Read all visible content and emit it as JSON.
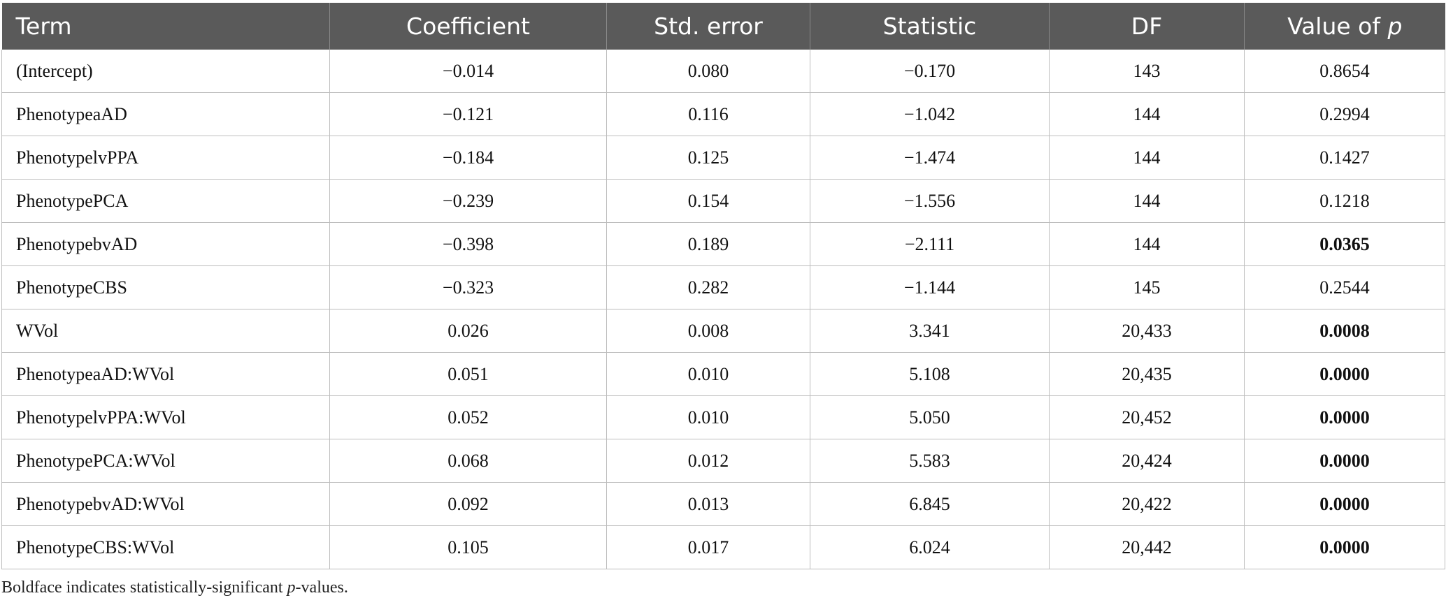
{
  "table": {
    "columns": [
      "Term",
      "Coefficient",
      "Std. error",
      "Statistic",
      "DF",
      "Value of"
    ],
    "last_col_italic": "p",
    "rows": [
      {
        "term": "(Intercept)",
        "coefficient": "−0.014",
        "std_error": "0.080",
        "statistic": "−0.170",
        "df": "143",
        "p": "0.8654",
        "significant": false
      },
      {
        "term": "PhenotypeaAD",
        "coefficient": "−0.121",
        "std_error": "0.116",
        "statistic": "−1.042",
        "df": "144",
        "p": "0.2994",
        "significant": false
      },
      {
        "term": "PhenotypelvPPA",
        "coefficient": "−0.184",
        "std_error": "0.125",
        "statistic": "−1.474",
        "df": "144",
        "p": "0.1427",
        "significant": false
      },
      {
        "term": "PhenotypePCA",
        "coefficient": "−0.239",
        "std_error": "0.154",
        "statistic": "−1.556",
        "df": "144",
        "p": "0.1218",
        "significant": false
      },
      {
        "term": "PhenotypebvAD",
        "coefficient": "−0.398",
        "std_error": "0.189",
        "statistic": "−2.111",
        "df": "144",
        "p": "0.0365",
        "significant": true
      },
      {
        "term": "PhenotypeCBS",
        "coefficient": "−0.323",
        "std_error": "0.282",
        "statistic": "−1.144",
        "df": "145",
        "p": "0.2544",
        "significant": false
      },
      {
        "term": "WVol",
        "coefficient": "0.026",
        "std_error": "0.008",
        "statistic": "3.341",
        "df": "20,433",
        "p": "0.0008",
        "significant": true
      },
      {
        "term": "PhenotypeaAD:WVol",
        "coefficient": "0.051",
        "std_error": "0.010",
        "statistic": "5.108",
        "df": "20,435",
        "p": "0.0000",
        "significant": true
      },
      {
        "term": "PhenotypelvPPA:WVol",
        "coefficient": "0.052",
        "std_error": "0.010",
        "statistic": "5.050",
        "df": "20,452",
        "p": "0.0000",
        "significant": true
      },
      {
        "term": "PhenotypePCA:WVol",
        "coefficient": "0.068",
        "std_error": "0.012",
        "statistic": "5.583",
        "df": "20,424",
        "p": "0.0000",
        "significant": true
      },
      {
        "term": "PhenotypebvAD:WVol",
        "coefficient": "0.092",
        "std_error": "0.013",
        "statistic": "6.845",
        "df": "20,422",
        "p": "0.0000",
        "significant": true
      },
      {
        "term": "PhenotypeCBS:WVol",
        "coefficient": "0.105",
        "std_error": "0.017",
        "statistic": "6.024",
        "df": "20,442",
        "p": "0.0000",
        "significant": true
      }
    ]
  },
  "footnote": {
    "prefix": "Boldface indicates statistically-significant ",
    "italic": "p",
    "suffix": "-values."
  },
  "colors": {
    "header_bg": "#5a5a5a",
    "header_text": "#ffffff",
    "grid": "#bdbdbd"
  }
}
